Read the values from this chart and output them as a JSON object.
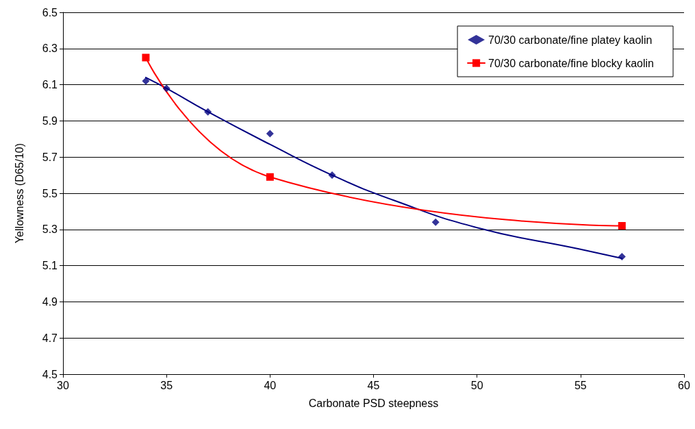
{
  "chart_data": {
    "type": "scatter",
    "xlabel": "Carbonate PSD steepness",
    "ylabel": "Yellowness (D65/10)",
    "xlim": [
      30,
      60
    ],
    "xticks": [
      30,
      35,
      40,
      45,
      50,
      55,
      60
    ],
    "ylim": [
      4.5,
      6.5
    ],
    "yticks": [
      4.5,
      4.7,
      4.9,
      5.1,
      5.3,
      5.5,
      5.7,
      5.9,
      6.1,
      6.3,
      6.5
    ],
    "grid": "y",
    "legend": "top right",
    "series": [
      {
        "name": "70/30 carbonate/fine platey kaolin",
        "marker": "diamond",
        "color": "#000080",
        "x": [
          34,
          35,
          37,
          40,
          43,
          48,
          57
        ],
        "values": [
          6.12,
          6.08,
          5.95,
          5.83,
          5.6,
          5.34,
          5.15
        ]
      },
      {
        "name": "70/30 carbonate/fine blocky kaolin",
        "type": "line",
        "marker": "square",
        "color": "#ff0000",
        "x": [
          34,
          40,
          57
        ],
        "values": [
          6.25,
          5.59,
          5.32
        ]
      },
      {
        "type": "line",
        "marker": "none",
        "color": "#000080",
        "x": [
          34,
          35,
          37,
          40,
          43,
          46,
          50,
          55,
          57
        ],
        "values": [
          6.14,
          6.08,
          5.95,
          5.77,
          5.6,
          5.46,
          5.31,
          5.19,
          5.14
        ]
      }
    ]
  }
}
